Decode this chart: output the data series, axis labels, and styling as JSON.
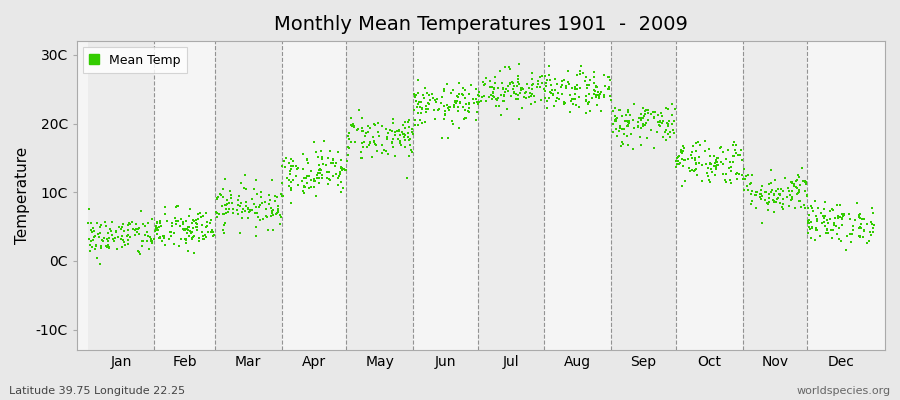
{
  "title": "Monthly Mean Temperatures 1901  -  2009",
  "ylabel": "Temperature",
  "bottom_left_text": "Latitude 39.75 Longitude 22.25",
  "bottom_right_text": "worldspecies.org",
  "legend_label": "Mean Temp",
  "dot_color": "#33cc00",
  "dot_size": 4,
  "background_color": "#e8e8e8",
  "plot_bg_color_light": "#ececec",
  "plot_bg_color_white": "#f5f5f5",
  "ytick_labels": [
    "-10C",
    "0C",
    "10C",
    "20C",
    "30C"
  ],
  "ytick_values": [
    -10,
    0,
    10,
    20,
    30
  ],
  "ylim": [
    -13,
    32
  ],
  "months": [
    "Jan",
    "Feb",
    "Mar",
    "Apr",
    "May",
    "Jun",
    "Jul",
    "Aug",
    "Sep",
    "Oct",
    "Nov",
    "Dec"
  ],
  "month_days": [
    31,
    28,
    31,
    30,
    31,
    30,
    31,
    31,
    30,
    31,
    30,
    31
  ],
  "mean_temps": [
    3.5,
    4.5,
    8.0,
    13.0,
    18.0,
    22.5,
    25.0,
    24.5,
    20.0,
    14.5,
    10.0,
    5.5
  ],
  "std_temps": [
    1.5,
    1.6,
    1.6,
    1.7,
    1.7,
    1.6,
    1.5,
    1.5,
    1.6,
    1.7,
    1.6,
    1.5
  ],
  "n_years": 109,
  "seed": 42
}
